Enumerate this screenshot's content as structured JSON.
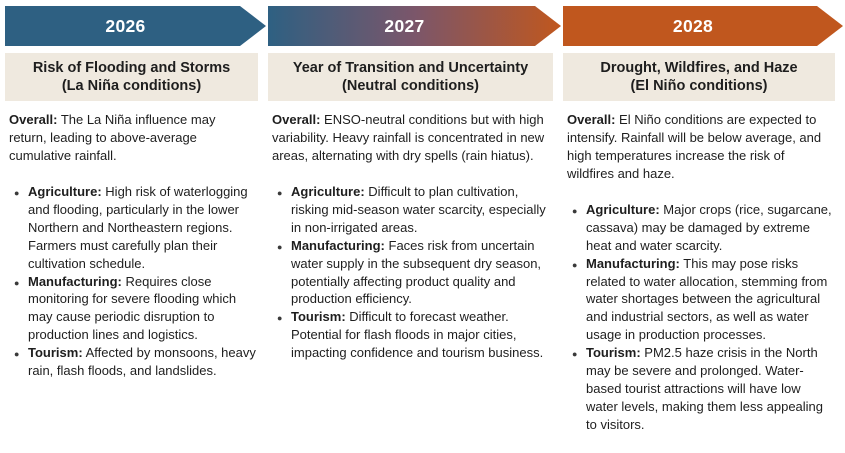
{
  "colors": {
    "blue": "#2E6082",
    "orange": "#C0571E",
    "gradient_mid": "#7B566A",
    "subtitle_bg": "#EFE9DF",
    "text": "#1E1E1E",
    "year_text": "#FFFFFF",
    "dot": "#3A3A3A"
  },
  "bullet_glyph": "●",
  "columns": [
    {
      "year": "2026",
      "subtitle_line1": "Risk of Flooding and Storms",
      "subtitle_line2": "(La Niña conditions)",
      "overall_label": "Overall:",
      "overall_text": "The La Niña influence may return, leading to above-average cumulative rainfall.",
      "bullets": [
        {
          "label": "Agriculture:",
          "text": "High risk of waterlogging and flooding, particularly in the lower Northern and Northeastern regions. Farmers must carefully plan their cultivation schedule."
        },
        {
          "label": "Manufacturing:",
          "text": "Requires close monitoring for severe flooding which may cause periodic disruption to production lines and logistics."
        },
        {
          "label": "Tourism:",
          "text": "Affected by monsoons, heavy rain, flash floods, and landslides."
        }
      ]
    },
    {
      "year": "2027",
      "subtitle_line1": "Year of Transition and Uncertainty",
      "subtitle_line2": "(Neutral conditions)",
      "overall_label": "Overall:",
      "overall_text": "ENSO-neutral conditions but with high variability. Heavy rainfall is concentrated in new areas, alternating with dry spells (rain hiatus).",
      "bullets": [
        {
          "label": "Agriculture:",
          "text": "Difficult to plan cultivation, risking mid-season water scarcity, especially in non-irrigated areas."
        },
        {
          "label": "Manufacturing:",
          "text": "Faces risk from uncertain water supply in the subsequent dry season, potentially affecting product quality and production efficiency."
        },
        {
          "label": "Tourism:",
          "text": "Difficult to forecast weather. Potential for flash floods in major cities, impacting confidence and tourism business."
        }
      ]
    },
    {
      "year": "2028",
      "subtitle_line1": "Drought, Wildfires, and Haze",
      "subtitle_line2": "(El Niño conditions)",
      "overall_label": "Overall:",
      "overall_text": "El Niño conditions are expected to intensify. Rainfall will be below average, and high temperatures increase the risk of wildfires and haze.",
      "bullets": [
        {
          "label": "Agriculture:",
          "text": "Major crops (rice, sugarcane, cassava) may be damaged by extreme heat and water scarcity."
        },
        {
          "label": "Manufacturing:",
          "text": "This may pose risks related to water allocation, stemming from water shortages between the agricultural and industrial sectors, as well as water usage in production processes."
        },
        {
          "label": "Tourism:",
          "text": "PM2.5 haze crisis in the North may be severe and prolonged. Water-based tourist attractions will have low water levels, making them less appealing to visitors."
        }
      ]
    }
  ]
}
